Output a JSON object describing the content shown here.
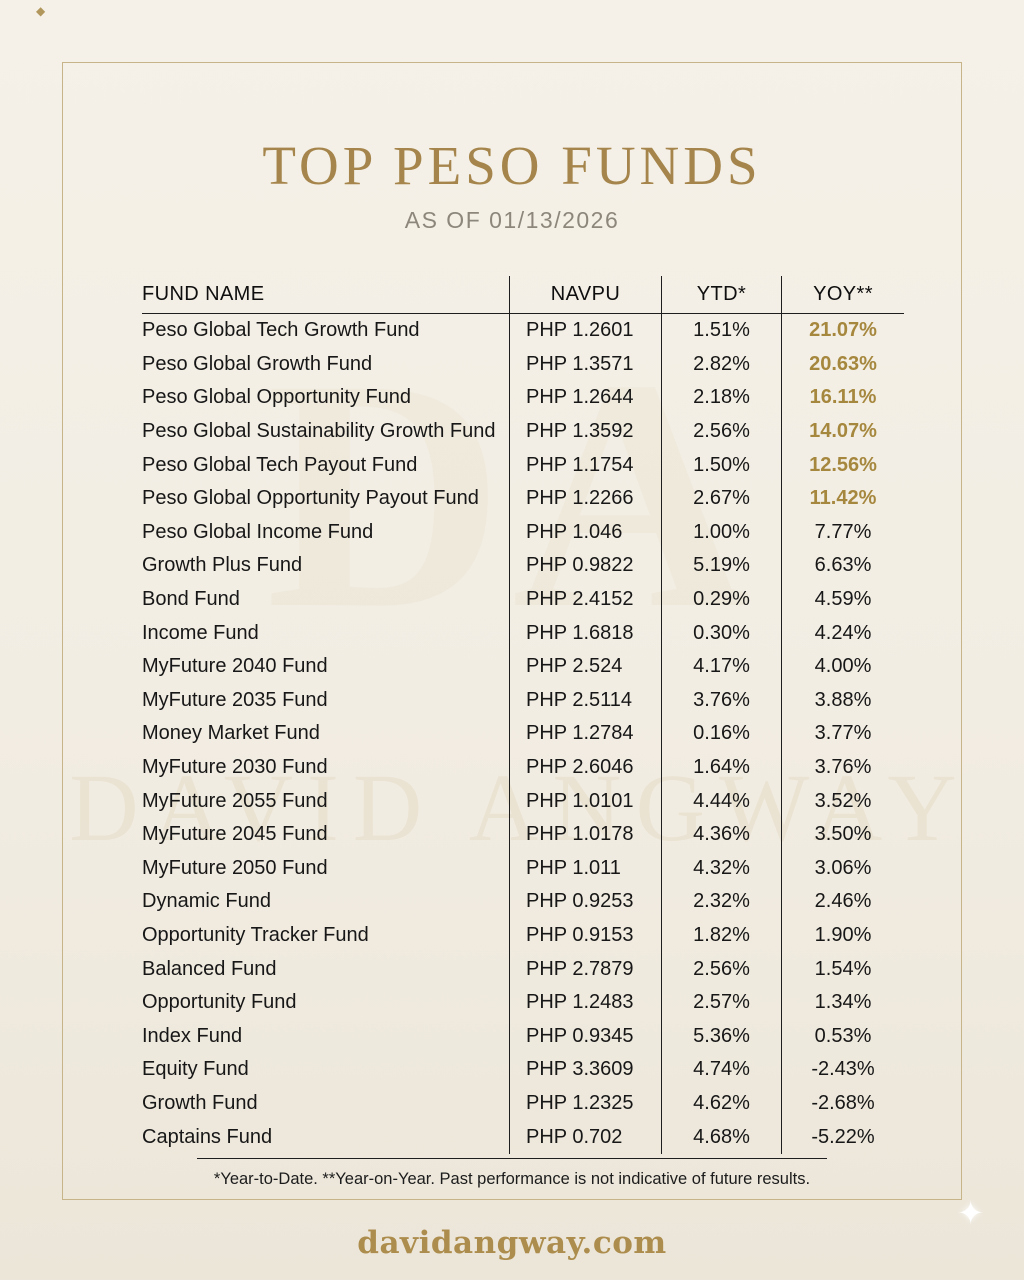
{
  "page": {
    "title": "TOP PESO FUNDS",
    "subtitle": "AS OF 01/13/2026",
    "footnote": "*Year-to-Date. **Year-on-Year. Past performance is not indicative of future results.",
    "website": "davidangway.com",
    "watermark_monogram": "DA",
    "watermark_name": "DAVID ANGWAY"
  },
  "colors": {
    "background": "#f2ede3",
    "frame_border": "#c7b488",
    "title_gold": "#a5854b",
    "subtitle_gray": "#8d877b",
    "text": "#171717",
    "highlight_gold": "#a6873e",
    "website_gold": "#ad8d4d"
  },
  "icons": {
    "diamond": "◆",
    "sparkle": "✦"
  },
  "chart_data": {
    "type": "table",
    "title": "TOP PESO FUNDS",
    "subtitle": "AS OF 01/13/2026",
    "columns": [
      "FUND NAME",
      "NAVPU",
      "YTD*",
      "YOY**"
    ],
    "rows": [
      {
        "fund": "Peso Global Tech Growth Fund",
        "navpu": "PHP 1.2601",
        "ytd": "1.51%",
        "yoy": "21.07%",
        "gold": true
      },
      {
        "fund": "Peso Global Growth Fund",
        "navpu": "PHP 1.3571",
        "ytd": "2.82%",
        "yoy": "20.63%",
        "gold": true
      },
      {
        "fund": "Peso Global Opportunity Fund",
        "navpu": "PHP 1.2644",
        "ytd": "2.18%",
        "yoy": "16.11%",
        "gold": true
      },
      {
        "fund": "Peso Global Sustainability Growth Fund",
        "navpu": "PHP 1.3592",
        "ytd": "2.56%",
        "yoy": "14.07%",
        "gold": true
      },
      {
        "fund": "Peso Global Tech Payout Fund",
        "navpu": "PHP 1.1754",
        "ytd": "1.50%",
        "yoy": "12.56%",
        "gold": true
      },
      {
        "fund": "Peso Global Opportunity Payout Fund",
        "navpu": "PHP 1.2266",
        "ytd": "2.67%",
        "yoy": "11.42%",
        "gold": true
      },
      {
        "fund": "Peso Global Income Fund",
        "navpu": "PHP 1.046",
        "ytd": "1.00%",
        "yoy": "7.77%",
        "gold": false
      },
      {
        "fund": "Growth Plus Fund",
        "navpu": "PHP 0.9822",
        "ytd": "5.19%",
        "yoy": "6.63%",
        "gold": false
      },
      {
        "fund": "Bond Fund",
        "navpu": "PHP 2.4152",
        "ytd": "0.29%",
        "yoy": "4.59%",
        "gold": false
      },
      {
        "fund": "Income Fund",
        "navpu": "PHP 1.6818",
        "ytd": "0.30%",
        "yoy": "4.24%",
        "gold": false
      },
      {
        "fund": "MyFuture 2040 Fund",
        "navpu": "PHP 2.524",
        "ytd": "4.17%",
        "yoy": "4.00%",
        "gold": false
      },
      {
        "fund": "MyFuture 2035 Fund",
        "navpu": "PHP 2.5114",
        "ytd": "3.76%",
        "yoy": "3.88%",
        "gold": false
      },
      {
        "fund": "Money Market Fund",
        "navpu": "PHP 1.2784",
        "ytd": "0.16%",
        "yoy": "3.77%",
        "gold": false
      },
      {
        "fund": "MyFuture 2030 Fund",
        "navpu": "PHP 2.6046",
        "ytd": "1.64%",
        "yoy": "3.76%",
        "gold": false
      },
      {
        "fund": "MyFuture 2055 Fund",
        "navpu": "PHP 1.0101",
        "ytd": "4.44%",
        "yoy": "3.52%",
        "gold": false
      },
      {
        "fund": "MyFuture 2045 Fund",
        "navpu": "PHP 1.0178",
        "ytd": "4.36%",
        "yoy": "3.50%",
        "gold": false
      },
      {
        "fund": "MyFuture 2050 Fund",
        "navpu": "PHP 1.011",
        "ytd": "4.32%",
        "yoy": "3.06%",
        "gold": false
      },
      {
        "fund": "Dynamic Fund",
        "navpu": "PHP 0.9253",
        "ytd": "2.32%",
        "yoy": "2.46%",
        "gold": false
      },
      {
        "fund": "Opportunity Tracker Fund",
        "navpu": "PHP 0.9153",
        "ytd": "1.82%",
        "yoy": "1.90%",
        "gold": false
      },
      {
        "fund": "Balanced Fund",
        "navpu": "PHP 2.7879",
        "ytd": "2.56%",
        "yoy": "1.54%",
        "gold": false
      },
      {
        "fund": "Opportunity Fund",
        "navpu": "PHP 1.2483",
        "ytd": "2.57%",
        "yoy": "1.34%",
        "gold": false
      },
      {
        "fund": "Index Fund",
        "navpu": "PHP 0.9345",
        "ytd": "5.36%",
        "yoy": "0.53%",
        "gold": false
      },
      {
        "fund": "Equity Fund",
        "navpu": "PHP 3.3609",
        "ytd": "4.74%",
        "yoy": "-2.43%",
        "gold": false
      },
      {
        "fund": "Growth Fund",
        "navpu": "PHP 1.2325",
        "ytd": "4.62%",
        "yoy": "-2.68%",
        "gold": false
      },
      {
        "fund": "Captains Fund",
        "navpu": "PHP 0.702",
        "ytd": "4.68%",
        "yoy": "-5.22%",
        "gold": false
      }
    ],
    "footnote": "*Year-to-Date. **Year-on-Year. Past performance is not indicative of future results.",
    "legend_position": "none",
    "grid": "column-separators-and-header-rule"
  }
}
